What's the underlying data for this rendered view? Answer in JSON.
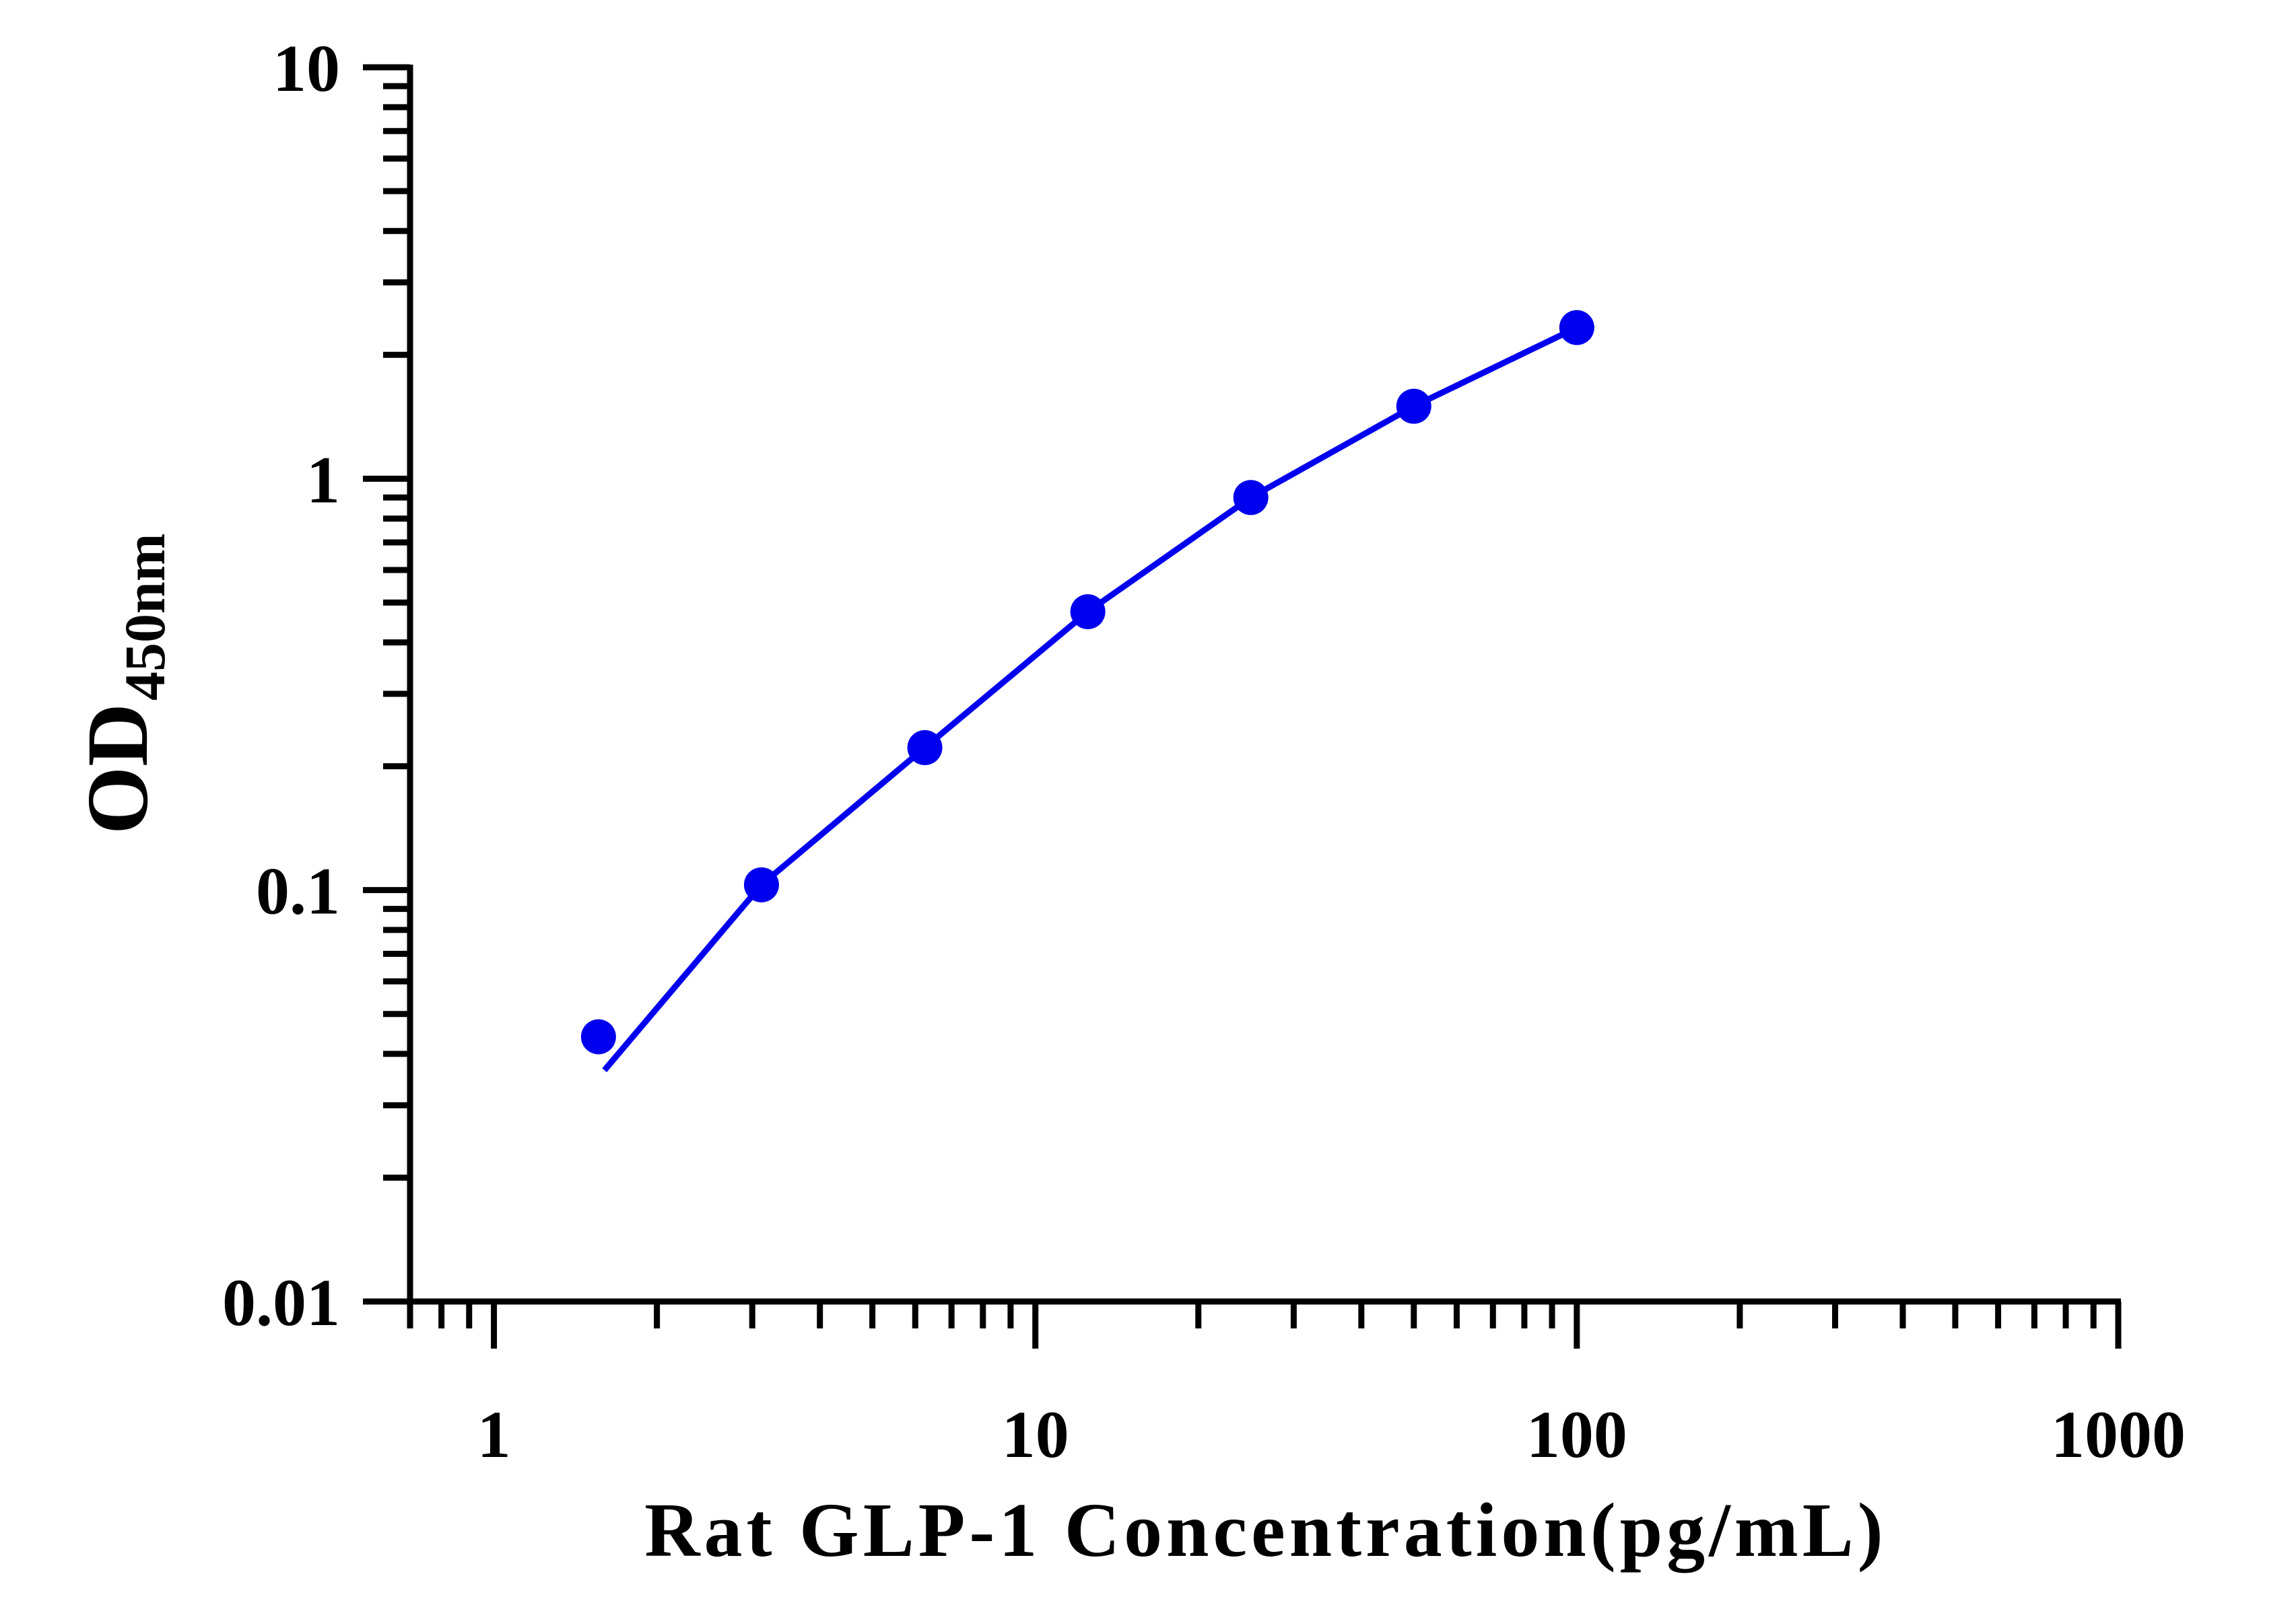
{
  "chart_data": {
    "type": "scatter",
    "title": "",
    "xlabel": "Rat GLP-1 Concentration(pg/mL)",
    "ylabel_main": "OD",
    "ylabel_sub": "450nm",
    "xscale": "log",
    "yscale": "log",
    "xlim": [
      0.7,
      1000
    ],
    "ylim": [
      0.01,
      10
    ],
    "x_ticks": [
      1,
      10,
      100,
      1000
    ],
    "x_tick_labels": [
      "1",
      "10",
      "100",
      "1000"
    ],
    "y_ticks": [
      0.01,
      0.1,
      1,
      10
    ],
    "y_tick_labels": [
      "0.01",
      "0.1",
      "1",
      "10"
    ],
    "grid": false,
    "legend": "none",
    "series": [
      {
        "points": [
          {
            "x": 1.56,
            "y": 0.044
          },
          {
            "x": 3.12,
            "y": 0.103
          },
          {
            "x": 6.25,
            "y": 0.222
          },
          {
            "x": 12.5,
            "y": 0.475
          },
          {
            "x": 25,
            "y": 0.9
          },
          {
            "x": 50,
            "y": 1.5
          },
          {
            "x": 100,
            "y": 2.33
          }
        ],
        "fit_curve": [
          {
            "x": 1.6,
            "y": 0.0365
          },
          {
            "x": 3.12,
            "y": 0.103
          },
          {
            "x": 6.25,
            "y": 0.222
          },
          {
            "x": 12.5,
            "y": 0.475
          },
          {
            "x": 25,
            "y": 0.9
          },
          {
            "x": 50,
            "y": 1.5
          },
          {
            "x": 100,
            "y": 2.33
          }
        ],
        "color": "#0000ee"
      }
    ]
  }
}
